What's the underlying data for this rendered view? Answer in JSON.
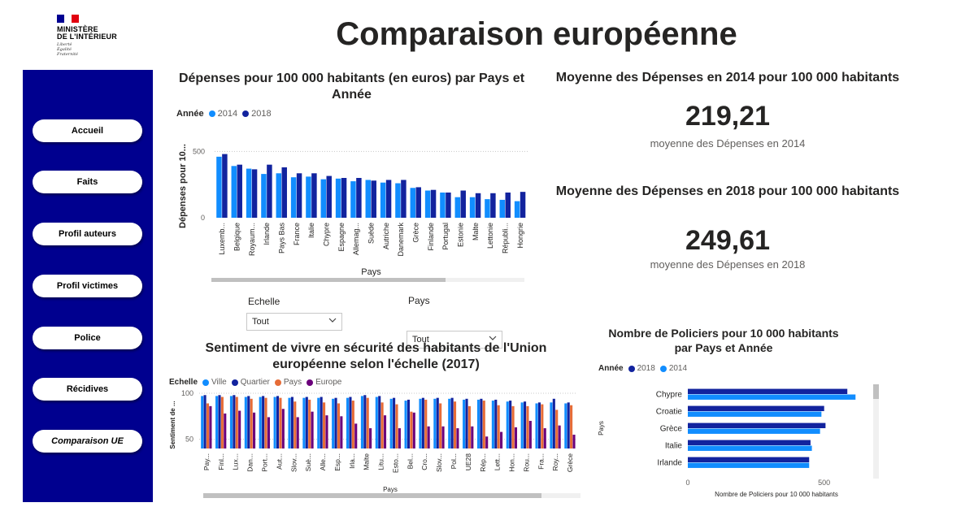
{
  "logo": {
    "line1": "MINISTÈRE",
    "line2": "DE L'INTÉRIEUR",
    "motto": [
      "Liberté",
      "Égalité",
      "Fraternité"
    ],
    "colors": [
      "#000091",
      "#ffffff",
      "#e1000f"
    ]
  },
  "page_title": "Comparaison européenne",
  "sidebar": {
    "background": "#00008f",
    "items": [
      {
        "label": "Accueil"
      },
      {
        "label": "Faits"
      },
      {
        "label": "Profil auteurs"
      },
      {
        "label": "Profil victimes"
      },
      {
        "label": "Police"
      },
      {
        "label": "Récidives"
      },
      {
        "label": "Comparaison UE",
        "active": true
      }
    ]
  },
  "chart1": {
    "title_line1": "Dépenses pour 100 000 habitants (en euros) par Pays et",
    "title_line2": "Année",
    "legend_title": "Année",
    "legend": [
      "2014",
      "2018"
    ],
    "colors": [
      "#118dff",
      "#12239e"
    ]
  },
  "kpi1": {
    "title": "Moyenne des Dépenses en 2014 pour 100 000 habitants",
    "value": "219,21",
    "label": "moyenne des Dépenses en 2014"
  },
  "kpi2": {
    "title": "Moyenne des Dépenses en 2018 pour 100 000 habitants",
    "value": "249,61",
    "label": "moyenne des Dépenses en 2018"
  },
  "slicers": {
    "echelle": {
      "label": "Echelle",
      "value": "Tout"
    },
    "pays": {
      "label": "Pays",
      "value": "Tout"
    }
  },
  "chart2": {
    "title_line1": "Sentiment de vivre en sécurité des habitants de l'Union",
    "title_line2": "européenne selon l'échelle (2017)",
    "legend_title": "Echelle",
    "legend": [
      "Ville",
      "Quartier",
      "Pays",
      "Europe"
    ],
    "colors": [
      "#118dff",
      "#12239e",
      "#e66c37",
      "#6b007b"
    ]
  },
  "chart3": {
    "title_line1": "Nombre de Policiers pour 10 000 habitants",
    "title_line2": "par Pays et Année",
    "legend_title": "Année",
    "legend": [
      "2018",
      "2014"
    ],
    "colors": [
      "#12239e",
      "#118dff"
    ]
  },
  "chart_data": [
    {
      "type": "bar",
      "title": "Dépenses pour 100 000 habitants (en euros) par Pays et Année",
      "xlabel": "Pays",
      "ylabel": "Dépenses pour 10...",
      "ylim": [
        0,
        600
      ],
      "yticks": [
        "0",
        "500"
      ],
      "grid": true,
      "legend_position": "top-left",
      "categories": [
        "Luxemb...",
        "Belgique",
        "Royaum...",
        "Irlande",
        "Pays Bas",
        "France",
        "Italie",
        "Chypre",
        "Espagne",
        "Allemag...",
        "Suède",
        "Autriche",
        "Danemark",
        "Grèce",
        "Finlande",
        "Portugal",
        "Estonie",
        "Malte",
        "Lettonie",
        "Républi...",
        "Hongrie"
      ],
      "series": [
        {
          "name": "2014",
          "values": [
            460,
            390,
            370,
            330,
            335,
            305,
            310,
            290,
            295,
            275,
            285,
            265,
            260,
            225,
            205,
            190,
            155,
            155,
            140,
            135,
            125
          ]
        },
        {
          "name": "2018",
          "values": [
            480,
            400,
            365,
            400,
            380,
            335,
            335,
            315,
            300,
            300,
            280,
            285,
            285,
            230,
            210,
            190,
            205,
            185,
            185,
            190,
            195
          ]
        }
      ]
    },
    {
      "type": "bar",
      "title": "Sentiment de vivre en sécurité des habitants de l'Union européenne selon l'échelle (2017)",
      "xlabel": "Pays",
      "ylabel": "Sentiment de ...",
      "ylim": [
        40,
        100
      ],
      "yticks": [
        "50",
        "100"
      ],
      "grid": true,
      "legend_position": "top-left",
      "categories": [
        "Pay...",
        "Finl...",
        "Lux...",
        "Dan...",
        "Port...",
        "Aut...",
        "Slov...",
        "Suè...",
        "Alle...",
        "Esp...",
        "Irla...",
        "Malte",
        "Litu...",
        "Esto...",
        "Bel...",
        "Cro...",
        "Slov...",
        "Pol...",
        "UE28",
        "Rép...",
        "Lett...",
        "Hon...",
        "Rou...",
        "Fra...",
        "Roy...",
        "Grèce"
      ],
      "series": [
        {
          "name": "Ville",
          "values": [
            97,
            97,
            97,
            96,
            96,
            96,
            95,
            95,
            95,
            94,
            95,
            97,
            96,
            94,
            92,
            94,
            94,
            94,
            93,
            93,
            92,
            91,
            90,
            89,
            90,
            89
          ]
        },
        {
          "name": "Quartier",
          "values": [
            98,
            98,
            98,
            97,
            97,
            97,
            96,
            96,
            96,
            95,
            96,
            98,
            97,
            95,
            93,
            95,
            95,
            95,
            94,
            94,
            93,
            92,
            91,
            90,
            94,
            90
          ]
        },
        {
          "name": "Pays",
          "values": [
            89,
            96,
            96,
            94,
            95,
            95,
            91,
            93,
            90,
            89,
            92,
            95,
            90,
            88,
            80,
            93,
            89,
            91,
            86,
            92,
            87,
            86,
            86,
            88,
            82,
            87
          ]
        },
        {
          "name": "Europe",
          "values": [
            86,
            78,
            81,
            79,
            74,
            83,
            74,
            80,
            76,
            75,
            67,
            62,
            76,
            62,
            79,
            64,
            64,
            62,
            64,
            53,
            58,
            63,
            70,
            62,
            65,
            55
          ]
        }
      ]
    },
    {
      "type": "bar",
      "orientation": "horizontal",
      "title": "Nombre de Policiers pour 10 000 habitants par Pays et Année",
      "xlabel": "Nombre de Policiers pour 10 000 habitants",
      "ylabel": "Pays",
      "xlim": [
        0,
        650
      ],
      "xticks": [
        "0",
        "500"
      ],
      "legend_position": "top-left",
      "categories": [
        "Chypre",
        "Croatie",
        "Grèce",
        "Italie",
        "Irlande"
      ],
      "series": [
        {
          "name": "2018",
          "values": [
            585,
            500,
            505,
            450,
            445
          ]
        },
        {
          "name": "2014",
          "values": [
            615,
            490,
            485,
            455,
            445
          ]
        }
      ]
    }
  ]
}
